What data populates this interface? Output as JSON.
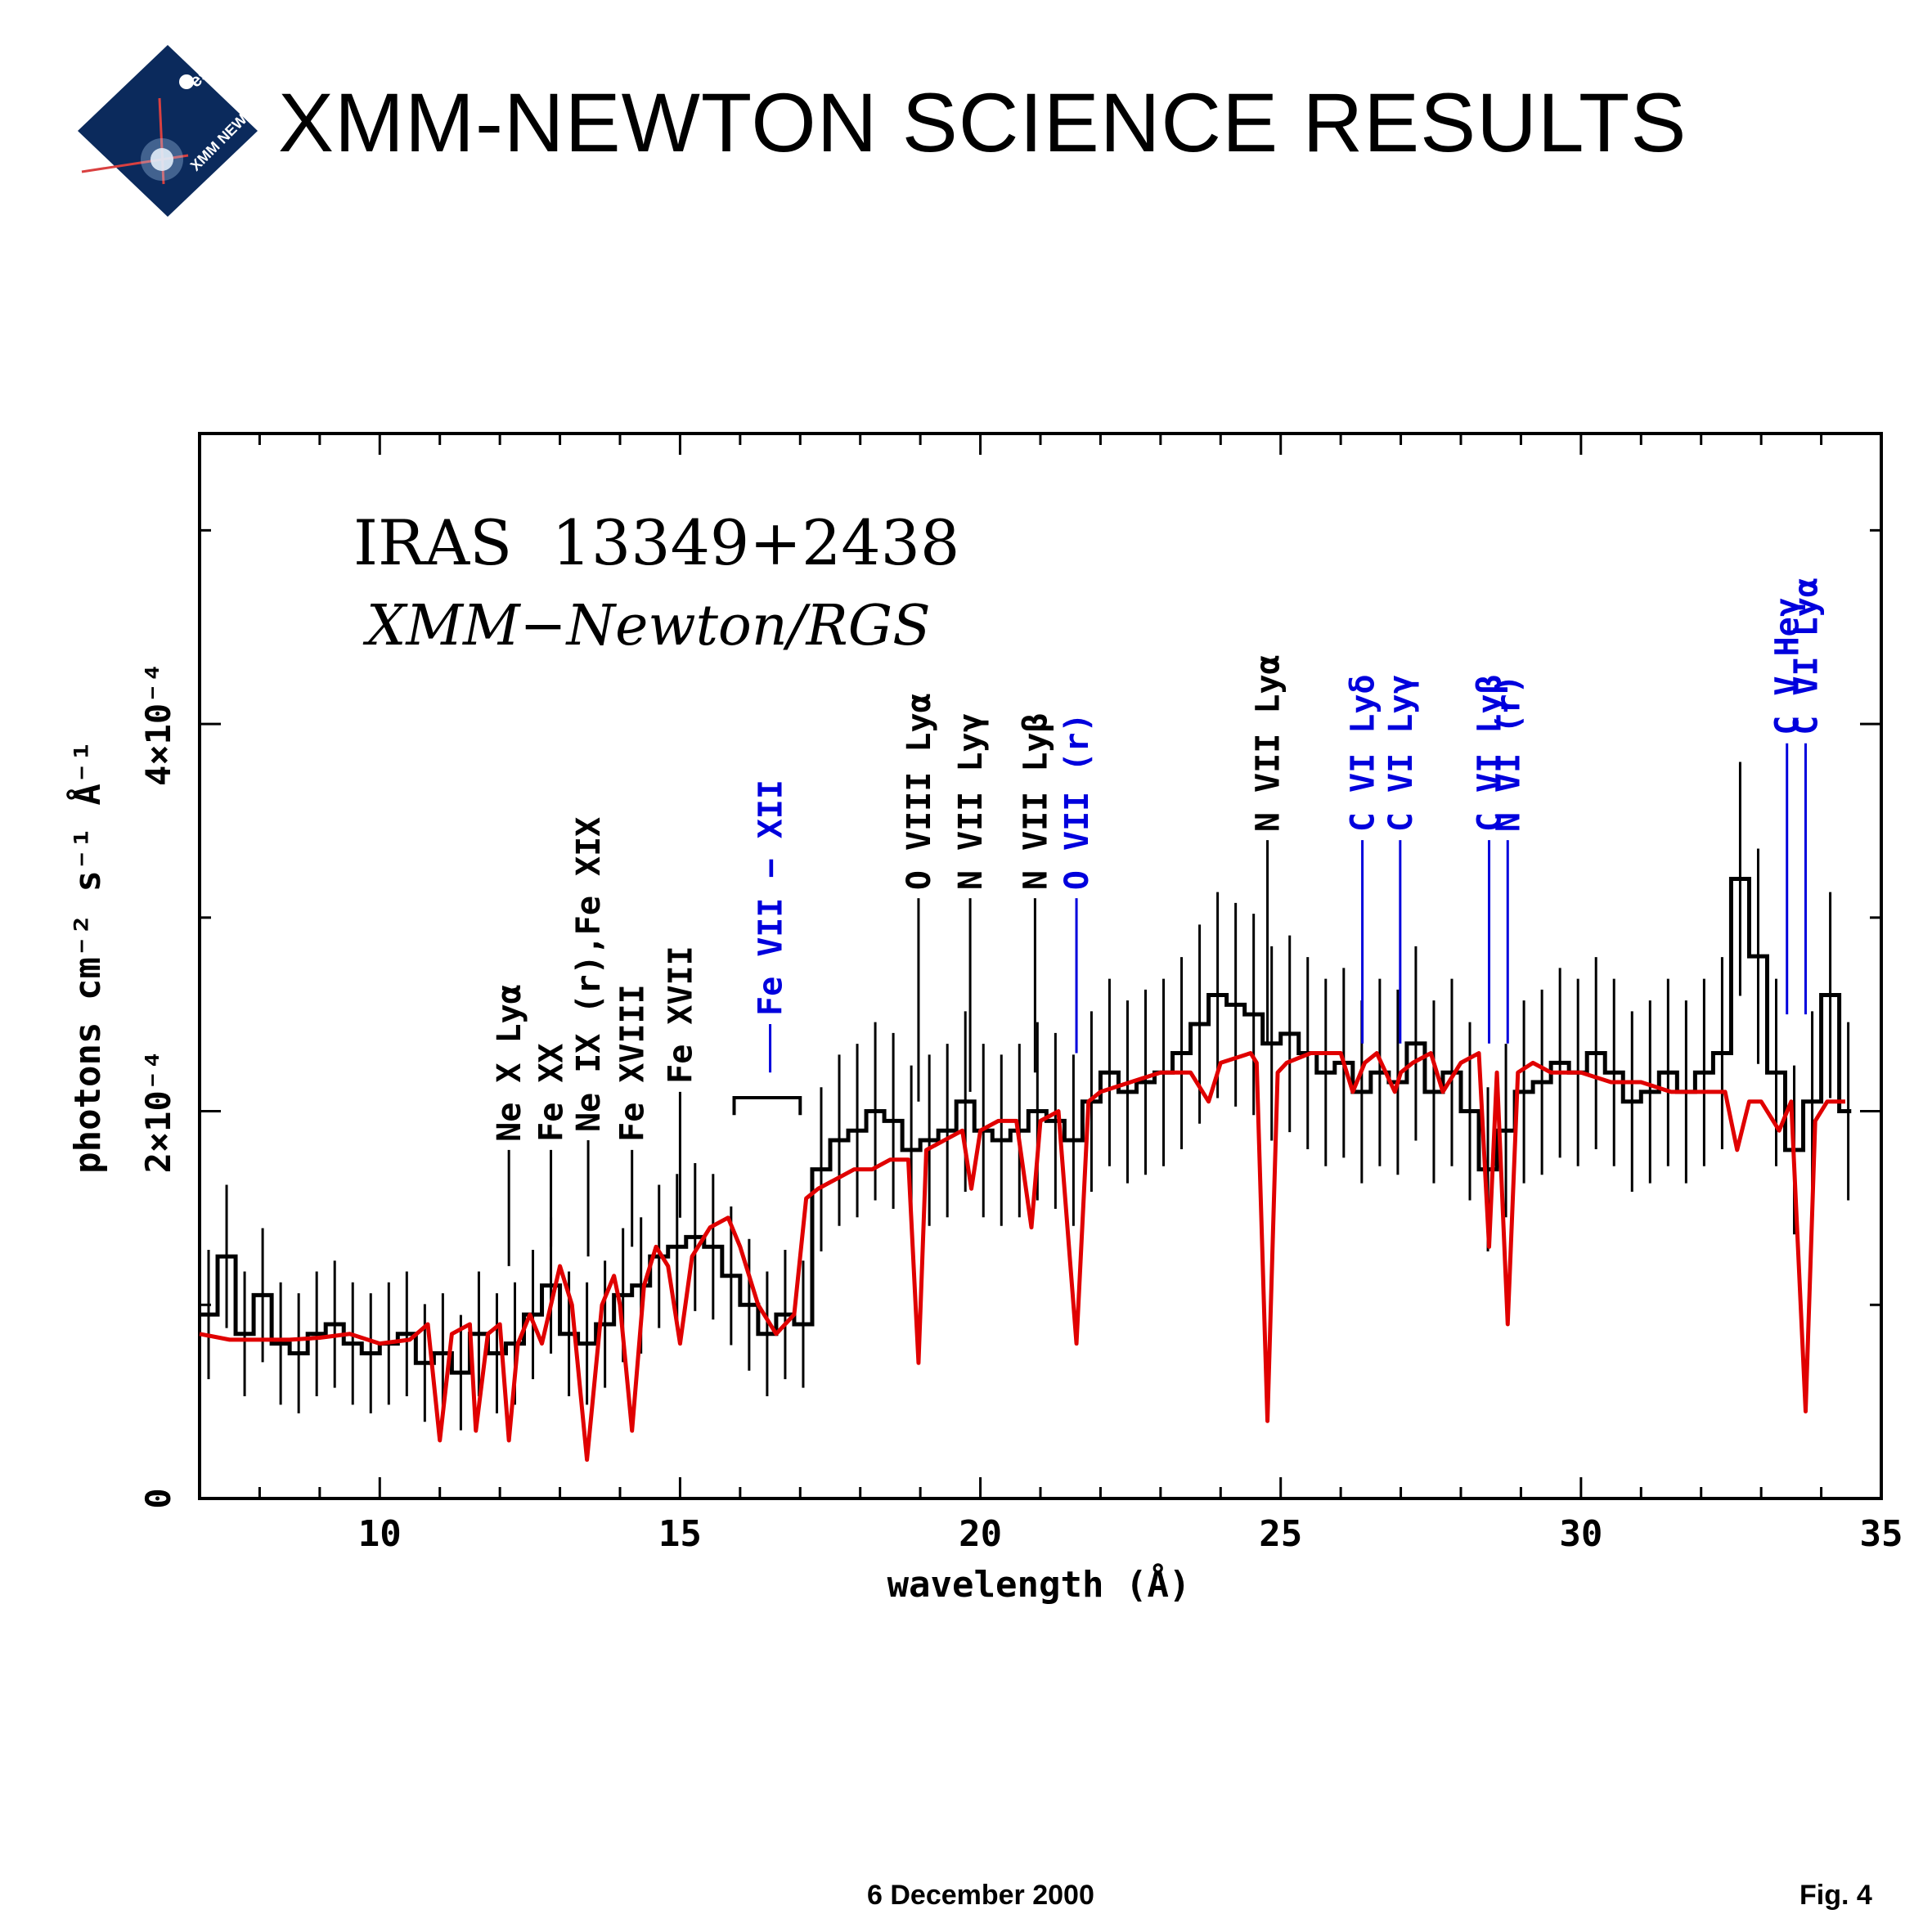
{
  "header": {
    "title": "XMM-NEWTON SCIENCE RESULTS",
    "logo_text_top": "esa",
    "logo_text_main": "XMM NEWTON"
  },
  "footer": {
    "date": "6 December 2000",
    "figure": "Fig. 4"
  },
  "chart_data": {
    "type": "line",
    "title": "IRAS  13349+2438",
    "subtitle": "XMM−Newton/RGS",
    "xlabel": "wavelength (Å)",
    "ylabel": "photons cm⁻² s⁻¹ Å⁻¹",
    "xlim": [
      7,
      35
    ],
    "ylim": [
      0,
      0.00055
    ],
    "x_ticks": [
      10,
      15,
      20,
      25,
      30,
      35
    ],
    "y_ticks": [
      {
        "value": 0,
        "label": "0"
      },
      {
        "value": 0.0002,
        "label": "2×10⁻⁴"
      },
      {
        "value": 0.0004,
        "label": "4×10⁻⁴"
      }
    ],
    "grid": false,
    "series": [
      {
        "color": "#000000",
        "style": "histogram-with-errorbars",
        "x": [
          7.0,
          7.3,
          7.6,
          7.9,
          8.2,
          8.5,
          8.8,
          9.1,
          9.4,
          9.7,
          10.0,
          10.3,
          10.6,
          10.9,
          11.2,
          11.5,
          11.8,
          12.1,
          12.4,
          12.7,
          13.0,
          13.3,
          13.6,
          13.9,
          14.2,
          14.5,
          14.8,
          15.1,
          15.4,
          15.7,
          16.0,
          16.3,
          16.6,
          16.9,
          17.2,
          17.5,
          17.8,
          18.1,
          18.4,
          18.7,
          19.0,
          19.3,
          19.6,
          19.9,
          20.2,
          20.5,
          20.8,
          21.1,
          21.4,
          21.7,
          22.0,
          22.3,
          22.6,
          22.9,
          23.2,
          23.5,
          23.8,
          24.1,
          24.4,
          24.7,
          25.0,
          25.3,
          25.6,
          25.9,
          26.2,
          26.5,
          26.8,
          27.1,
          27.4,
          27.7,
          28.0,
          28.3,
          28.6,
          28.9,
          29.2,
          29.5,
          29.8,
          30.1,
          30.4,
          30.7,
          31.0,
          31.3,
          31.6,
          31.9,
          32.2,
          32.5,
          32.8,
          33.1,
          33.4,
          33.7,
          34.0,
          34.3
        ],
        "y": [
          9.5e-05,
          0.000125,
          8.5e-05,
          0.000105,
          8e-05,
          7.5e-05,
          8.5e-05,
          9e-05,
          8e-05,
          7.5e-05,
          8e-05,
          8.5e-05,
          7e-05,
          7.5e-05,
          6.5e-05,
          8.5e-05,
          7.5e-05,
          8e-05,
          9.5e-05,
          0.00011,
          8.5e-05,
          8e-05,
          9e-05,
          0.000105,
          0.00011,
          0.000125,
          0.00013,
          0.000135,
          0.00013,
          0.000115,
          0.0001,
          8.5e-05,
          9.5e-05,
          9e-05,
          0.00017,
          0.000185,
          0.00019,
          0.0002,
          0.000195,
          0.00018,
          0.000185,
          0.00019,
          0.000205,
          0.00019,
          0.000185,
          0.00019,
          0.0002,
          0.000195,
          0.000185,
          0.000205,
          0.00022,
          0.00021,
          0.000215,
          0.00022,
          0.00023,
          0.000245,
          0.00026,
          0.000255,
          0.00025,
          0.000235,
          0.00024,
          0.00023,
          0.00022,
          0.000225,
          0.00021,
          0.00022,
          0.000215,
          0.000235,
          0.00021,
          0.00022,
          0.0002,
          0.00017,
          0.00019,
          0.00021,
          0.000215,
          0.000225,
          0.00022,
          0.00023,
          0.00022,
          0.000205,
          0.00021,
          0.00022,
          0.00021,
          0.00022,
          0.00023,
          0.00032,
          0.00028,
          0.00022,
          0.00018,
          0.000205,
          0.00026,
          0.0002
        ]
      },
      {
        "color": "#e00000",
        "style": "model",
        "x": [
          7.0,
          7.5,
          8.0,
          8.5,
          9.0,
          9.5,
          10.0,
          10.5,
          10.8,
          11.0,
          11.2,
          11.5,
          11.6,
          11.8,
          12.0,
          12.15,
          12.3,
          12.5,
          12.7,
          12.85,
          13.0,
          13.2,
          13.45,
          13.7,
          13.9,
          14.0,
          14.2,
          14.4,
          14.6,
          14.8,
          15.0,
          15.2,
          15.5,
          15.8,
          16.0,
          16.3,
          16.6,
          16.9,
          17.1,
          17.3,
          17.6,
          17.9,
          18.2,
          18.5,
          18.8,
          18.97,
          19.1,
          19.4,
          19.7,
          19.85,
          20.0,
          20.3,
          20.6,
          20.85,
          21.0,
          21.3,
          21.6,
          21.8,
          22.0,
          22.5,
          23.0,
          23.5,
          23.8,
          24.0,
          24.5,
          24.6,
          24.78,
          24.95,
          25.1,
          25.5,
          26.0,
          26.2,
          26.4,
          26.6,
          26.9,
          27.0,
          27.2,
          27.5,
          27.7,
          28.0,
          28.3,
          28.47,
          28.6,
          28.78,
          28.95,
          29.2,
          29.5,
          30.0,
          30.5,
          31.0,
          31.5,
          32.0,
          32.4,
          32.6,
          32.8,
          33.0,
          33.3,
          33.5,
          33.74,
          33.9,
          34.1,
          34.4
        ],
        "y": [
          8.5e-05,
          8.2e-05,
          8.2e-05,
          8.2e-05,
          8.3e-05,
          8.5e-05,
          8e-05,
          8.2e-05,
          9e-05,
          3e-05,
          8.5e-05,
          9e-05,
          3.5e-05,
          8.5e-05,
          9e-05,
          3e-05,
          8e-05,
          9.5e-05,
          8e-05,
          0.0001,
          0.00012,
          0.0001,
          2e-05,
          0.0001,
          0.000115,
          0.0001,
          3.5e-05,
          0.00011,
          0.00013,
          0.00012,
          8e-05,
          0.000125,
          0.00014,
          0.000145,
          0.00013,
          0.0001,
          8.5e-05,
          9.5e-05,
          0.000155,
          0.00016,
          0.000165,
          0.00017,
          0.00017,
          0.000175,
          0.000175,
          7e-05,
          0.00018,
          0.000185,
          0.00019,
          0.00016,
          0.00019,
          0.000195,
          0.000195,
          0.00014,
          0.000195,
          0.0002,
          8e-05,
          0.000205,
          0.00021,
          0.000215,
          0.00022,
          0.00022,
          0.000205,
          0.000225,
          0.00023,
          0.000225,
          4e-05,
          0.00022,
          0.000225,
          0.00023,
          0.00023,
          0.00021,
          0.000225,
          0.00023,
          0.00021,
          0.00022,
          0.000225,
          0.00023,
          0.00021,
          0.000225,
          0.00023,
          0.00013,
          0.00022,
          9e-05,
          0.00022,
          0.000225,
          0.00022,
          0.00022,
          0.000215,
          0.000215,
          0.00021,
          0.00021,
          0.00021,
          0.00018,
          0.000205,
          0.000205,
          0.00019,
          0.000205,
          4.5e-05,
          0.000195,
          0.000205,
          0.000205
        ]
      }
    ],
    "annotations": [
      {
        "text": "Ne X Lyα",
        "x": 12.15,
        "line_top": 0.00018,
        "line_bottom": 0.00012,
        "color": "#000000"
      },
      {
        "text": "Fe XX",
        "x": 12.85,
        "line_top": 0.00018,
        "line_bottom": 0.00013,
        "color": "#000000"
      },
      {
        "text": "Ne IX (r),Fe XIX",
        "x": 13.47,
        "line_top": 0.000185,
        "line_bottom": 0.000125,
        "color": "#000000"
      },
      {
        "text": "Fe XVIII",
        "x": 14.2,
        "line_top": 0.00018,
        "line_bottom": 0.00013,
        "color": "#000000"
      },
      {
        "text": "Fe XVII",
        "x": 15.0,
        "line_top": 0.00021,
        "line_bottom": 0.000145,
        "color": "#000000"
      },
      {
        "text": "Fe VII − XII",
        "x": 16.5,
        "line_top": 0.000245,
        "line_bottom": 0.00022,
        "color": "#0000dd"
      },
      {
        "text": "O VIII Lyα",
        "x": 18.97,
        "line_top": 0.00031,
        "line_bottom": 0.000205,
        "color": "#000000"
      },
      {
        "text": "N VII Lyγ",
        "x": 19.83,
        "line_top": 0.00031,
        "line_bottom": 0.00021,
        "color": "#000000"
      },
      {
        "text": "N VII Lyβ",
        "x": 20.91,
        "line_top": 0.00031,
        "line_bottom": 0.00022,
        "color": "#000000"
      },
      {
        "text": "O VII (r)",
        "x": 21.6,
        "line_top": 0.00031,
        "line_bottom": 0.00023,
        "color": "#0000dd"
      },
      {
        "text": "N VII Lyα",
        "x": 24.78,
        "line_top": 0.00034,
        "line_bottom": 0.000235,
        "color": "#000000"
      },
      {
        "text": "C VI Lyδ",
        "x": 26.36,
        "line_top": 0.00034,
        "line_bottom": 0.000235,
        "color": "#0000dd"
      },
      {
        "text": "C VI Lyγ",
        "x": 26.99,
        "line_top": 0.00034,
        "line_bottom": 0.000235,
        "color": "#0000dd"
      },
      {
        "text": "C VI Lyβ",
        "x": 28.47,
        "line_top": 0.00034,
        "line_bottom": 0.000235,
        "color": "#0000dd"
      },
      {
        "text": "N VI (r)",
        "x": 28.78,
        "line_top": 0.00034,
        "line_bottom": 0.000235,
        "color": "#0000dd"
      },
      {
        "text": "C V Heγ",
        "x": 33.43,
        "line_top": 0.00039,
        "line_bottom": 0.00025,
        "color": "#0000dd"
      },
      {
        "text": "C VI Lyα",
        "x": 33.74,
        "line_top": 0.00039,
        "line_bottom": 0.00025,
        "color": "#0000dd"
      }
    ]
  }
}
